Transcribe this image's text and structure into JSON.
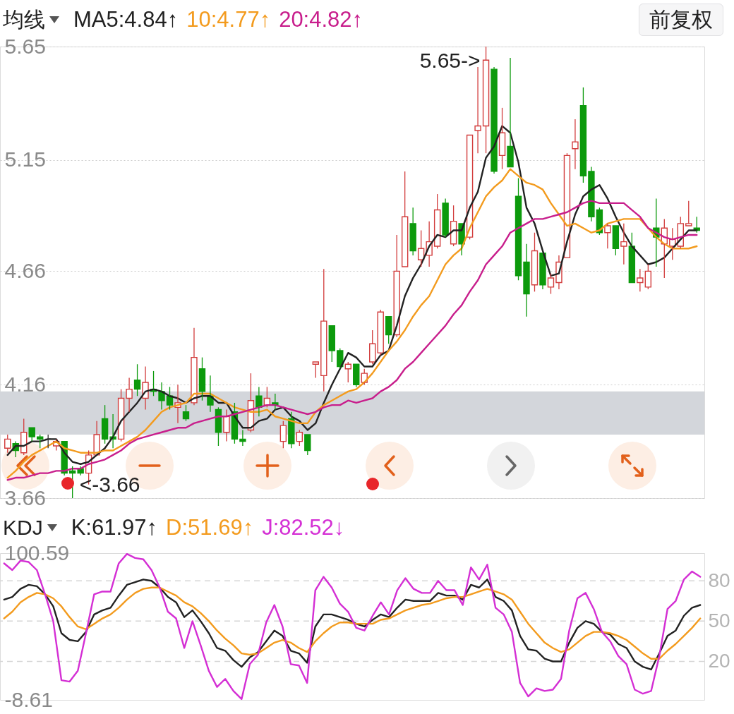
{
  "chart_data": [
    {
      "type": "candlestick",
      "legend_title": "均线",
      "legend": "top left",
      "categories": [
        null,
        null,
        null,
        null,
        null,
        null,
        null,
        null,
        null,
        null,
        null,
        null,
        null,
        null,
        null,
        null,
        null,
        null,
        null,
        null,
        null,
        null,
        null,
        null,
        null,
        null,
        null,
        null,
        null,
        null,
        null,
        null,
        null,
        null,
        null,
        null,
        null,
        null,
        null,
        null,
        null,
        null,
        null,
        null,
        null,
        null,
        null,
        null,
        null,
        null,
        null,
        null,
        null,
        null,
        null,
        null,
        null,
        null,
        null,
        null,
        null,
        null,
        null,
        null,
        null,
        null,
        null,
        null,
        null,
        null,
        null,
        null,
        null,
        null,
        null,
        null,
        null,
        null,
        null,
        null,
        null,
        null,
        null,
        null,
        null,
        null
      ],
      "ohlc": [
        [
          3.88,
          3.94,
          3.86,
          3.92
        ],
        [
          3.9,
          3.91,
          3.84,
          3.87
        ],
        [
          3.86,
          4.01,
          3.85,
          3.95
        ],
        [
          3.97,
          3.97,
          3.91,
          3.93
        ],
        [
          3.93,
          3.94,
          3.88,
          3.92
        ],
        [
          3.92,
          3.94,
          3.88,
          3.92
        ],
        [
          3.89,
          3.92,
          3.87,
          3.91
        ],
        [
          3.91,
          3.91,
          3.76,
          3.77
        ],
        [
          3.78,
          3.8,
          3.66,
          3.77
        ],
        [
          3.79,
          3.8,
          3.76,
          3.77
        ],
        [
          3.77,
          3.87,
          3.72,
          3.85
        ],
        [
          3.85,
          4.0,
          3.85,
          3.94
        ],
        [
          4.01,
          4.07,
          3.9,
          3.92
        ],
        [
          3.93,
          4.03,
          3.88,
          3.92
        ],
        [
          3.92,
          4.14,
          3.91,
          4.1
        ],
        [
          4.1,
          4.19,
          4.04,
          4.14
        ],
        [
          4.18,
          4.25,
          4.11,
          4.14
        ],
        [
          4.1,
          4.24,
          4.05,
          4.17
        ],
        [
          4.14,
          4.22,
          4.11,
          4.13
        ],
        [
          4.13,
          4.17,
          4.05,
          4.09
        ],
        [
          4.11,
          4.15,
          4.05,
          4.07
        ],
        [
          4.06,
          4.16,
          3.99,
          4.08
        ],
        [
          4.04,
          4.07,
          4.0,
          4.01
        ],
        [
          4.08,
          4.41,
          4.07,
          4.28
        ],
        [
          4.23,
          4.28,
          4.09,
          4.13
        ],
        [
          4.11,
          4.2,
          4.04,
          4.07
        ],
        [
          4.05,
          4.06,
          3.89,
          3.95
        ],
        [
          3.95,
          4.05,
          3.91,
          4.02
        ],
        [
          4.04,
          4.08,
          3.9,
          3.92
        ],
        [
          3.92,
          3.96,
          3.89,
          3.91
        ],
        [
          3.96,
          4.21,
          3.95,
          4.09
        ],
        [
          4.11,
          4.15,
          4.02,
          4.06
        ],
        [
          4.07,
          4.15,
          4.06,
          4.1
        ],
        [
          4.08,
          4.12,
          4.05,
          4.07
        ],
        [
          3.91,
          4.0,
          3.88,
          3.98
        ],
        [
          4.01,
          4.04,
          3.88,
          3.9
        ],
        [
          3.91,
          3.96,
          3.89,
          3.95
        ],
        [
          3.94,
          3.94,
          3.85,
          3.87
        ],
        [
          4.25,
          4.26,
          4.19,
          4.26
        ],
        [
          4.2,
          4.67,
          4.13,
          4.44
        ],
        [
          4.42,
          4.42,
          4.26,
          4.31
        ],
        [
          4.31,
          4.32,
          4.23,
          4.24
        ],
        [
          4.23,
          4.26,
          4.17,
          4.25
        ],
        [
          4.25,
          4.25,
          4.15,
          4.16
        ],
        [
          4.17,
          4.23,
          4.16,
          4.21
        ],
        [
          4.26,
          4.4,
          4.25,
          4.34
        ],
        [
          4.3,
          4.49,
          4.29,
          4.48
        ],
        [
          4.46,
          4.46,
          4.34,
          4.38
        ],
        [
          4.38,
          4.82,
          4.37,
          4.66
        ],
        [
          4.68,
          5.1,
          4.68,
          4.9
        ],
        [
          4.87,
          4.94,
          4.73,
          4.75
        ],
        [
          4.71,
          4.84,
          4.68,
          4.76
        ],
        [
          4.73,
          4.88,
          4.68,
          4.79
        ],
        [
          4.77,
          5.0,
          4.76,
          4.93
        ],
        [
          4.96,
          4.98,
          4.81,
          4.82
        ],
        [
          4.78,
          4.95,
          4.77,
          4.88
        ],
        [
          4.87,
          4.87,
          4.73,
          4.78
        ],
        [
          4.81,
          5.26,
          4.8,
          5.26
        ],
        [
          5.28,
          5.56,
          5.18,
          5.3
        ],
        [
          5.3,
          5.65,
          5.18,
          5.59
        ],
        [
          5.55,
          5.56,
          5.09,
          5.1
        ],
        [
          5.17,
          5.38,
          5.11,
          5.27
        ],
        [
          5.21,
          5.6,
          5.12,
          5.12
        ],
        [
          4.99,
          5.07,
          4.62,
          4.64
        ],
        [
          4.7,
          4.78,
          4.46,
          4.56
        ],
        [
          4.6,
          4.83,
          4.57,
          4.75
        ],
        [
          4.74,
          4.74,
          4.58,
          4.6
        ],
        [
          4.59,
          4.65,
          4.56,
          4.63
        ],
        [
          4.61,
          4.73,
          4.58,
          4.7
        ],
        [
          4.72,
          5.18,
          4.72,
          5.17
        ],
        [
          5.2,
          5.33,
          5.11,
          5.23
        ],
        [
          5.39,
          5.47,
          5.05,
          5.08
        ],
        [
          5.1,
          5.12,
          4.88,
          4.9
        ],
        [
          4.93,
          4.94,
          4.82,
          4.83
        ],
        [
          4.83,
          4.87,
          4.76,
          4.86
        ],
        [
          4.86,
          4.86,
          4.73,
          4.76
        ],
        [
          4.77,
          4.87,
          4.69,
          4.79
        ],
        [
          4.77,
          4.83,
          4.61,
          4.61
        ],
        [
          4.61,
          4.67,
          4.57,
          4.63
        ],
        [
          4.59,
          4.69,
          4.58,
          4.66
        ],
        [
          4.85,
          4.98,
          4.68,
          4.81
        ],
        [
          4.78,
          4.89,
          4.63,
          4.85
        ],
        [
          4.77,
          4.85,
          4.71,
          4.8
        ],
        [
          4.77,
          4.9,
          4.76,
          4.87
        ],
        [
          4.86,
          4.97,
          4.86,
          4.87
        ],
        [
          4.85,
          4.9,
          4.83,
          4.84
        ]
      ],
      "colors": [
        "#d23c3c",
        "#0c9a0c",
        "#d23c3c",
        "#0c9a0c",
        "#0c9a0c",
        "#333333",
        "#d23c3c",
        "#0c9a0c",
        "#0c9a0c",
        "#0c9a0c",
        "#d23c3c",
        "#d23c3c",
        "#0c9a0c",
        "#0c9a0c",
        "#d23c3c",
        "#d23c3c",
        "#0c9a0c",
        "#d23c3c",
        "#0c9a0c",
        "#0c9a0c",
        "#0c9a0c",
        "#d23c3c",
        "#0c9a0c",
        "#d23c3c",
        "#0c9a0c",
        "#0c9a0c",
        "#0c9a0c",
        "#d23c3c",
        "#0c9a0c",
        "#0c9a0c",
        "#d23c3c",
        "#0c9a0c",
        "#d23c3c",
        "#0c9a0c",
        "#d23c3c",
        "#0c9a0c",
        "#d23c3c",
        "#0c9a0c",
        "#d23c3c",
        "#d23c3c",
        "#0c9a0c",
        "#0c9a0c",
        "#d23c3c",
        "#0c9a0c",
        "#d23c3c",
        "#d23c3c",
        "#d23c3c",
        "#0c9a0c",
        "#d23c3c",
        "#d23c3c",
        "#0c9a0c",
        "#d23c3c",
        "#d23c3c",
        "#d23c3c",
        "#0c9a0c",
        "#d23c3c",
        "#0c9a0c",
        "#d23c3c",
        "#d23c3c",
        "#d23c3c",
        "#0c9a0c",
        "#d23c3c",
        "#0c9a0c",
        "#0c9a0c",
        "#0c9a0c",
        "#d23c3c",
        "#0c9a0c",
        "#d23c3c",
        "#d23c3c",
        "#d23c3c",
        "#d23c3c",
        "#0c9a0c",
        "#0c9a0c",
        "#0c9a0c",
        "#d23c3c",
        "#0c9a0c",
        "#d23c3c",
        "#0c9a0c",
        "#d23c3c",
        "#d23c3c",
        "#0c9a0c",
        "#d23c3c",
        "#d23c3c",
        "#d23c3c",
        "#d23c3c",
        "#0c9a0c"
      ],
      "series": [
        {
          "name": "MA5:4.84↑",
          "type": "line",
          "color": "#222222",
          "values": [
            3.85,
            3.89,
            3.89,
            3.91,
            3.91,
            3.92,
            3.92,
            3.86,
            3.82,
            3.81,
            3.82,
            3.85,
            3.88,
            3.93,
            4.0,
            4.04,
            4.08,
            4.13,
            4.14,
            4.13,
            4.11,
            4.1,
            4.08,
            4.1,
            4.11,
            4.11,
            4.08,
            4.08,
            4.02,
            3.97,
            3.97,
            4.0,
            4.01,
            4.05,
            4.06,
            4.02,
            4.0,
            3.96,
            3.99,
            4.08,
            4.16,
            4.23,
            4.3,
            4.28,
            4.24,
            4.24,
            4.29,
            4.31,
            4.42,
            4.55,
            4.63,
            4.69,
            4.77,
            4.82,
            4.81,
            4.84,
            4.84,
            4.94,
            5.01,
            5.16,
            5.21,
            5.3,
            5.27,
            5.14,
            4.94,
            4.87,
            4.75,
            4.64,
            4.65,
            4.79,
            4.91,
            4.99,
            5.02,
            5.04,
            4.98,
            4.9,
            4.83,
            4.77,
            4.73,
            4.69,
            4.7,
            4.72,
            4.76,
            4.8,
            4.84,
            4.84
          ]
        },
        {
          "name": "10:4.77↑",
          "type": "line",
          "color": "#f39b1e",
          "values": [
            3.75,
            3.78,
            3.82,
            3.85,
            3.87,
            3.89,
            3.91,
            3.88,
            3.87,
            3.86,
            3.86,
            3.86,
            3.87,
            3.87,
            3.89,
            3.91,
            3.93,
            3.96,
            4.0,
            4.04,
            4.06,
            4.07,
            4.08,
            4.12,
            4.12,
            4.12,
            4.1,
            4.08,
            4.06,
            4.05,
            4.04,
            4.04,
            4.05,
            4.02,
            4.01,
            4.0,
            3.99,
            3.99,
            4.04,
            4.07,
            4.09,
            4.11,
            4.13,
            4.14,
            4.17,
            4.21,
            4.26,
            4.31,
            4.35,
            4.4,
            4.46,
            4.51,
            4.55,
            4.62,
            4.69,
            4.73,
            4.76,
            4.85,
            4.92,
            4.99,
            5.03,
            5.06,
            5.11,
            5.08,
            5.05,
            5.04,
            5.02,
            4.96,
            4.91,
            4.86,
            4.87,
            4.85,
            4.83,
            4.84,
            4.87,
            4.88,
            4.89,
            4.89,
            4.89,
            4.85,
            4.81,
            4.78,
            4.76,
            4.76,
            4.76,
            4.77
          ]
        },
        {
          "name": "20:4.82↑",
          "type": "line",
          "color": "#c81e8c",
          "values": [
            3.74,
            3.75,
            3.75,
            3.76,
            3.77,
            3.77,
            3.78,
            3.78,
            3.79,
            3.79,
            3.81,
            3.82,
            3.83,
            3.85,
            3.87,
            3.9,
            3.92,
            3.93,
            3.94,
            3.95,
            3.96,
            3.97,
            3.97,
            3.99,
            4.0,
            4.01,
            4.02,
            4.02,
            4.03,
            4.04,
            4.05,
            4.06,
            4.07,
            4.07,
            4.06,
            4.05,
            4.04,
            4.03,
            4.04,
            4.06,
            4.07,
            4.07,
            4.09,
            4.08,
            4.09,
            4.1,
            4.13,
            4.15,
            4.18,
            4.23,
            4.26,
            4.3,
            4.34,
            4.38,
            4.42,
            4.47,
            4.51,
            4.57,
            4.62,
            4.69,
            4.73,
            4.77,
            4.83,
            4.85,
            4.87,
            4.89,
            4.89,
            4.9,
            4.91,
            4.92,
            4.94,
            4.96,
            4.97,
            4.96,
            4.96,
            4.96,
            4.96,
            4.93,
            4.9,
            4.85,
            4.83,
            4.81,
            4.8,
            4.81,
            4.82,
            4.82
          ]
        }
      ],
      "ylim": [
        3.66,
        5.65
      ],
      "yticks": [
        3.66,
        4.16,
        4.66,
        5.15,
        5.65
      ],
      "grid": "y",
      "bands": [
        {
          "axis": "y",
          "from": 3.94,
          "to": 4.13,
          "color": "#d3d6db"
        }
      ],
      "annotations": [
        "5.65->",
        "<-3.66",
        "前复权"
      ],
      "tick_labels": "y"
    },
    {
      "type": "line",
      "legend_title": "KDJ",
      "legend": "top left",
      "categories": [
        null,
        null,
        null,
        null,
        null,
        null,
        null,
        null,
        null,
        null,
        null,
        null,
        null,
        null,
        null,
        null,
        null,
        null,
        null,
        null,
        null,
        null,
        null,
        null,
        null,
        null,
        null,
        null,
        null,
        null,
        null,
        null,
        null,
        null,
        null,
        null,
        null,
        null,
        null,
        null,
        null,
        null,
        null,
        null,
        null,
        null,
        null,
        null,
        null,
        null,
        null,
        null,
        null,
        null,
        null,
        null,
        null,
        null,
        null,
        null,
        null,
        null,
        null,
        null,
        null,
        null,
        null,
        null,
        null,
        null,
        null,
        null,
        null,
        null,
        null,
        null,
        null,
        null,
        null,
        null,
        null,
        null,
        null,
        null,
        null,
        null
      ],
      "series": [
        {
          "name": "K:61.97↑",
          "color": "#222222",
          "values": [
            66,
            68,
            74,
            77,
            76,
            70,
            61,
            41,
            36,
            35,
            42,
            55,
            58,
            60,
            69,
            77,
            79,
            81,
            80,
            75,
            68,
            64,
            53,
            58,
            50,
            41,
            30,
            28,
            21,
            16,
            23,
            27,
            35,
            43,
            39,
            28,
            26,
            19,
            46,
            55,
            55,
            53,
            51,
            48,
            46,
            51,
            55,
            53,
            60,
            66,
            65,
            65,
            65,
            71,
            69,
            69,
            66,
            77,
            75,
            81,
            68,
            65,
            58,
            39,
            29,
            28,
            22,
            20,
            20,
            34,
            45,
            50,
            48,
            42,
            40,
            33,
            30,
            20,
            16,
            14,
            26,
            39,
            43,
            54,
            60,
            62
          ]
        },
        {
          "name": "D:51.69↑",
          "color": "#f39b1e",
          "values": [
            52,
            57,
            64,
            68,
            71,
            70,
            67,
            61,
            53,
            46,
            44,
            48,
            52,
            55,
            60,
            66,
            71,
            74,
            75,
            75,
            72,
            69,
            64,
            61,
            56,
            50,
            43,
            37,
            32,
            26,
            25,
            26,
            30,
            34,
            36,
            34,
            30,
            27,
            35,
            41,
            46,
            49,
            49,
            48,
            48,
            48,
            51,
            52,
            55,
            58,
            60,
            62,
            63,
            65,
            67,
            68,
            68,
            70,
            72,
            74,
            72,
            70,
            66,
            57,
            48,
            41,
            34,
            30,
            27,
            29,
            34,
            39,
            42,
            42,
            41,
            39,
            36,
            31,
            26,
            22,
            22,
            28,
            33,
            39,
            45,
            52
          ]
        },
        {
          "name": "J:82.52↓",
          "color": "#d42fd4",
          "values": [
            93,
            88,
            95,
            94,
            88,
            70,
            50,
            6,
            5,
            13,
            41,
            70,
            72,
            72,
            93,
            100,
            97,
            96,
            88,
            75,
            57,
            52,
            30,
            50,
            32,
            13,
            1,
            7,
            -2,
            -8,
            18,
            25,
            49,
            62,
            46,
            18,
            17,
            4,
            73,
            83,
            75,
            63,
            57,
            45,
            43,
            54,
            64,
            55,
            73,
            82,
            74,
            71,
            71,
            80,
            73,
            73,
            62,
            90,
            81,
            92,
            60,
            55,
            42,
            4,
            -6,
            0,
            -2,
            -1,
            7,
            43,
            67,
            71,
            59,
            42,
            35,
            24,
            18,
            -1,
            -4,
            -2,
            24,
            59,
            65,
            81,
            87,
            83
          ]
        }
      ],
      "ylim": [
        -8.61,
        100.59
      ],
      "yticks": [
        -8.61,
        100.59
      ],
      "y2lim": [
        -8.61,
        100.59
      ],
      "y2ticks": [
        20,
        50,
        80
      ],
      "ref_lines": [
        {
          "axis": "y2",
          "value": 80,
          "line_style": "dashed",
          "color": "#d6d6d6"
        },
        {
          "axis": "y2",
          "value": 50,
          "line_style": "dashed",
          "color": "#d6d6d6"
        },
        {
          "axis": "y2",
          "value": 20,
          "line_style": "dashed",
          "color": "#d6d6d6"
        }
      ],
      "tick_labels": "y"
    }
  ]
}
